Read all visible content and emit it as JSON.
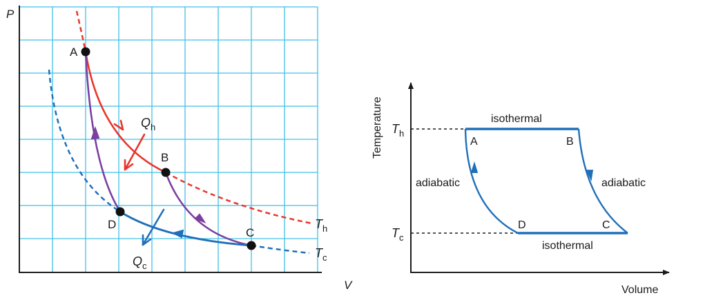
{
  "pv_diagram": {
    "y_axis_label": "P",
    "x_axis_label": "V",
    "points": {
      "a": "A",
      "b": "B",
      "c": "C",
      "d": "D"
    },
    "heat_in": {
      "main": "Q",
      "sub": "h"
    },
    "heat_out": {
      "main": "Q",
      "sub": "c"
    },
    "hot_isotherm": {
      "main": "T",
      "sub": "h"
    },
    "cold_isotherm": {
      "main": "T",
      "sub": "c"
    },
    "colors": {
      "grid": "#3fc1e6",
      "hot": "#e8352c",
      "cold": "#1f6fba",
      "adiabat": "#7b3fa0",
      "point": "#111111"
    }
  },
  "tv_diagram": {
    "y_axis_label": "Temperature",
    "x_axis_label": "Volume",
    "hot_tick": {
      "main": "T",
      "sub": "h"
    },
    "cold_tick": {
      "main": "T",
      "sub": "c"
    },
    "top_label": "isothermal",
    "bottom_label": "isothermal",
    "left_label": "adiabatic",
    "right_label": "adiabatic",
    "points": {
      "a": "A",
      "b": "B",
      "c": "C",
      "d": "D"
    },
    "colors": {
      "cycle": "#1f6fba",
      "axis": "#1a1a1a"
    }
  }
}
